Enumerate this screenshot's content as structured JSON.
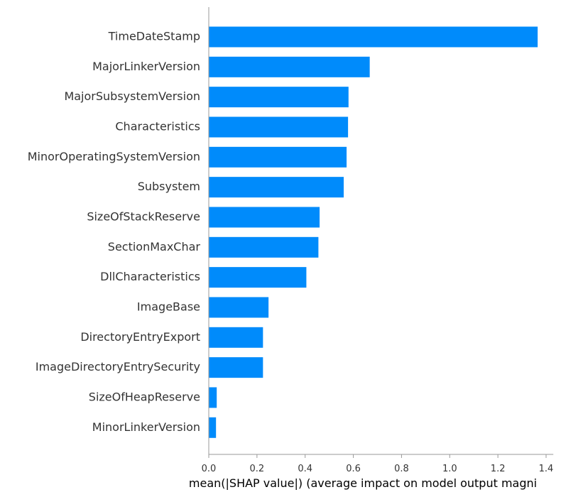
{
  "chart_data": {
    "type": "bar",
    "orientation": "horizontal",
    "categories": [
      "TimeDateStamp",
      "MajorLinkerVersion",
      "MajorSubsystemVersion",
      "Characteristics",
      "MinorOperatingSystemVersion",
      "Subsystem",
      "SizeOfStackReserve",
      "SectionMaxChar",
      "DllCharacteristics",
      "ImageBase",
      "DirectoryEntryExport",
      "ImageDirectoryEntrySecurity",
      "SizeOfHeapReserve",
      "MinorLinkerVersion"
    ],
    "values": [
      1.365,
      0.668,
      0.58,
      0.578,
      0.572,
      0.56,
      0.46,
      0.455,
      0.405,
      0.248,
      0.225,
      0.225,
      0.033,
      0.03
    ],
    "title": "",
    "xlabel": "mean(|SHAP value|) (average impact on model output magni",
    "ylabel": "",
    "xlim": [
      0,
      1.43
    ],
    "xticks": [
      0.0,
      0.2,
      0.4,
      0.6,
      0.8,
      1.0,
      1.2,
      1.4
    ],
    "xtick_labels": [
      "0.0",
      "0.2",
      "0.4",
      "0.6",
      "0.8",
      "1.0",
      "1.2",
      "1.4"
    ],
    "bar_color": "#008bfb",
    "grid": false
  }
}
